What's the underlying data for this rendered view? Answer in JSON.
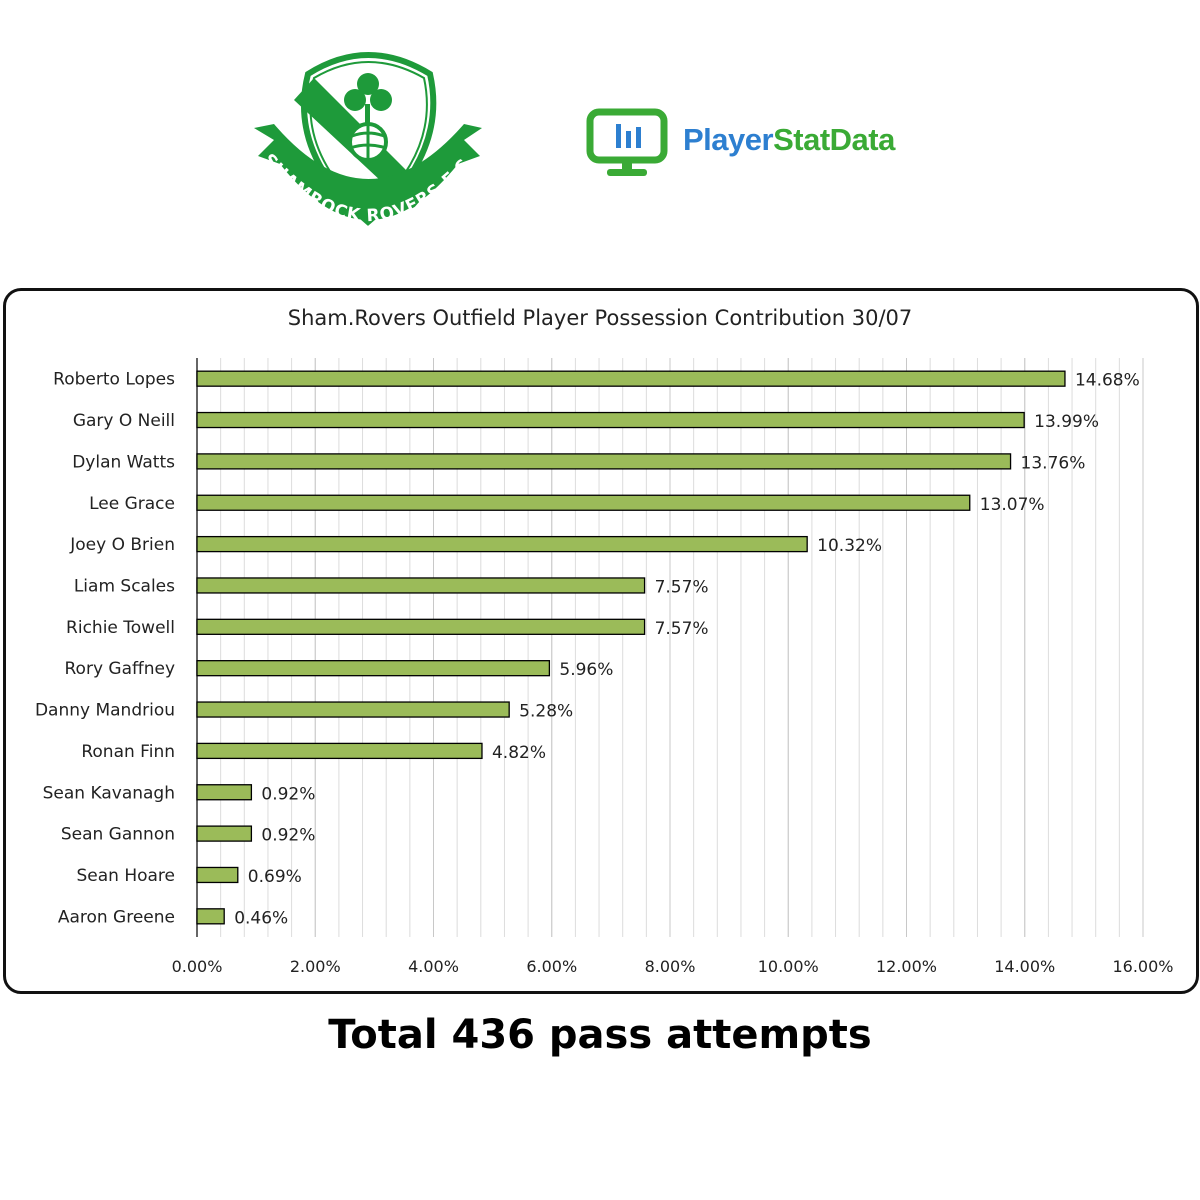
{
  "logos": {
    "club_crest": {
      "icon": "shamrock-rovers-crest",
      "text": "SHAMROCK ROVERS F.C.",
      "color": "#1e9a3a"
    },
    "brand": {
      "icon": "monitor-bar-chart-icon",
      "name_part1": "Player",
      "name_part2": "StatData",
      "color_part1": "#2d7fd0",
      "color_part2": "#3aaa35"
    }
  },
  "chart_data": {
    "type": "bar",
    "orientation": "horizontal",
    "title": "Sham.Rovers Outfield Player Possession Contribution 30/07",
    "categories": [
      "Roberto Lopes",
      "Gary O Neill",
      "Dylan Watts",
      "Lee Grace",
      "Joey O Brien",
      "Liam Scales",
      "Richie Towell",
      "Rory Gaffney",
      "Danny Mandriou",
      "Ronan Finn",
      "Sean Kavanagh",
      "Sean Gannon",
      "Sean Hoare",
      "Aaron Greene"
    ],
    "values": [
      14.68,
      13.99,
      13.76,
      13.07,
      10.32,
      7.57,
      7.57,
      5.96,
      5.28,
      4.82,
      0.92,
      0.92,
      0.69,
      0.46
    ],
    "data_labels": [
      "14.68%",
      "13.99%",
      "13.76%",
      "13.07%",
      "10.32%",
      "7.57%",
      "7.57%",
      "5.96%",
      "5.28%",
      "4.82%",
      "0.92%",
      "0.92%",
      "0.69%",
      "0.46%"
    ],
    "x_ticks": [
      0,
      2,
      4,
      6,
      8,
      10,
      12,
      14,
      16
    ],
    "x_tick_labels": [
      "0.00%",
      "2.00%",
      "4.00%",
      "6.00%",
      "8.00%",
      "10.00%",
      "12.00%",
      "14.00%",
      "16.00%"
    ],
    "xlim": [
      0,
      16
    ],
    "grid": true,
    "bar_color": "#9bbb59"
  },
  "footer": {
    "text": "Total 436 pass attempts"
  }
}
